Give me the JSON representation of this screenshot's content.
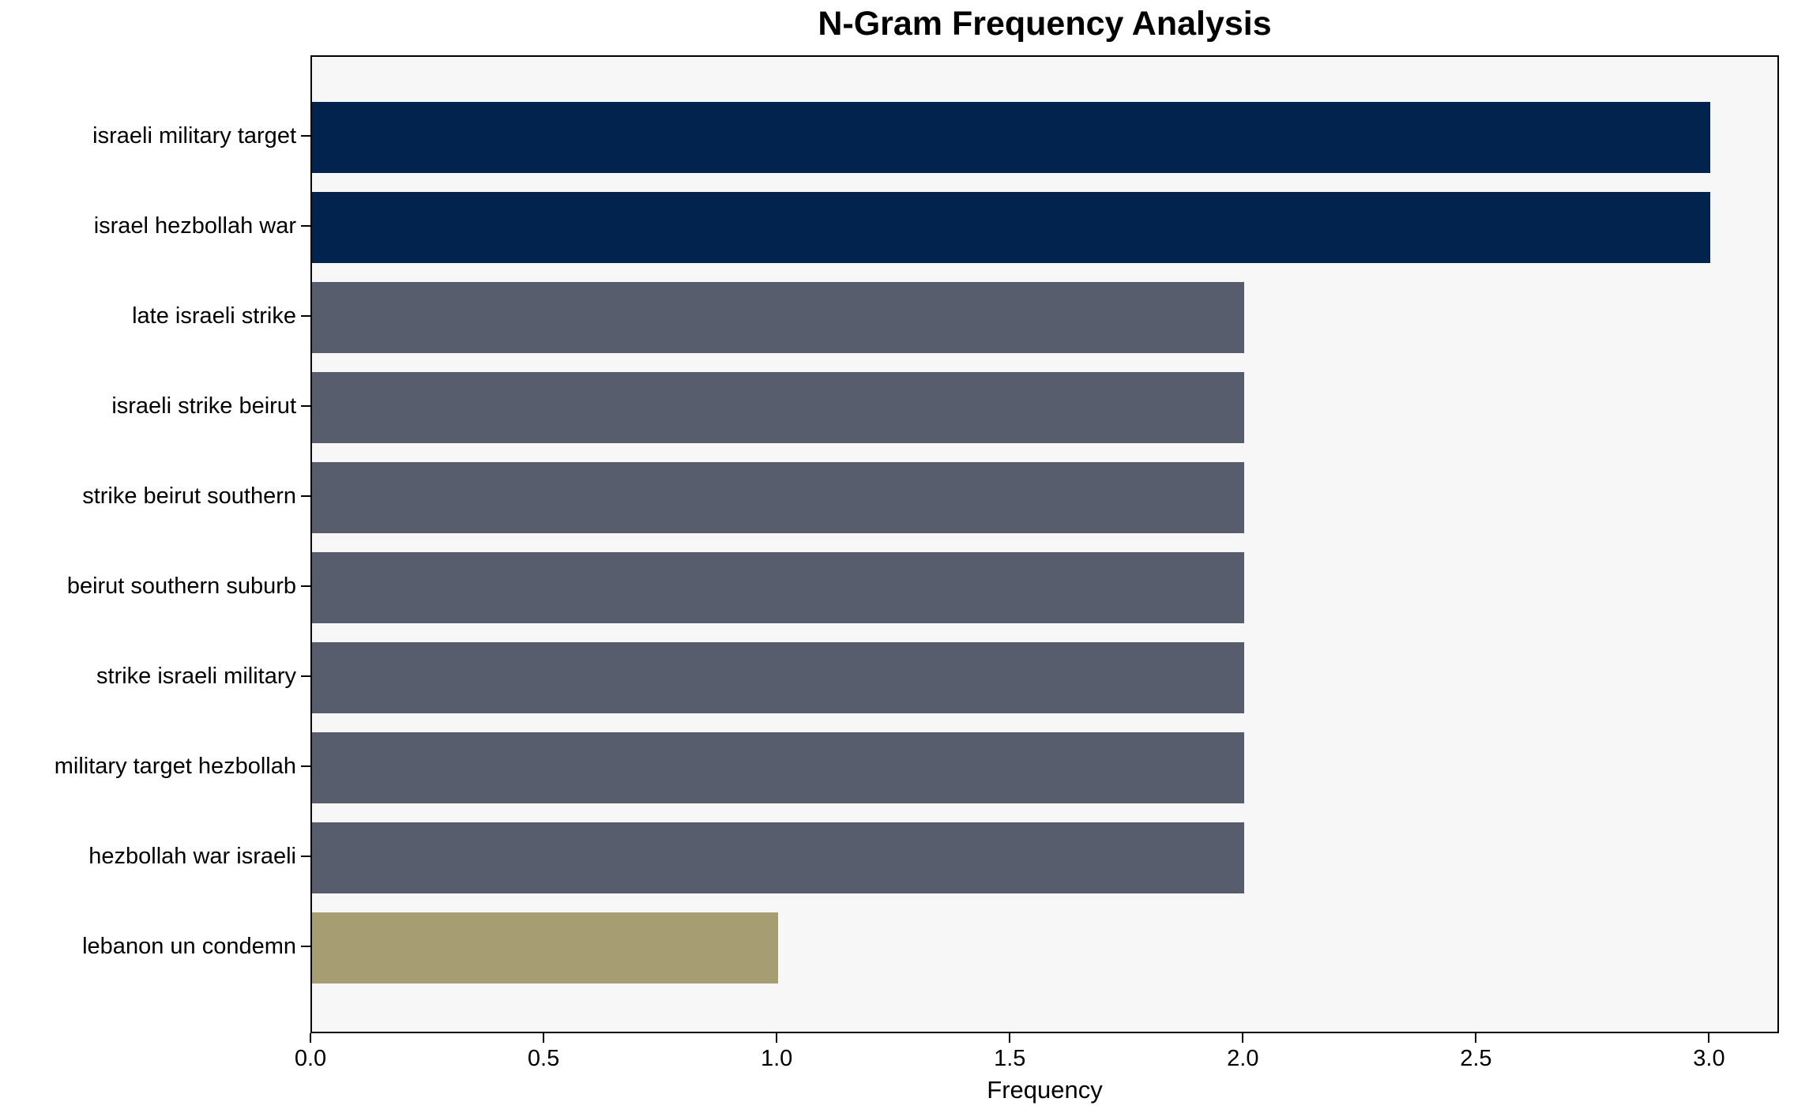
{
  "chart_data": {
    "type": "bar",
    "orientation": "horizontal",
    "title": "N-Gram Frequency Analysis",
    "xlabel": "Frequency",
    "ylabel": "",
    "categories": [
      "israeli military target",
      "israel hezbollah war",
      "late israeli strike",
      "israeli strike beirut",
      "strike beirut southern",
      "beirut southern suburb",
      "strike israeli military",
      "military target hezbollah",
      "hezbollah war israeli",
      "lebanon un condemn"
    ],
    "values": [
      3,
      3,
      2,
      2,
      2,
      2,
      2,
      2,
      2,
      1
    ],
    "bar_colors": [
      "#02234d",
      "#02234d",
      "#575d6d",
      "#575d6d",
      "#575d6d",
      "#575d6d",
      "#575d6d",
      "#575d6d",
      "#575d6d",
      "#a79d73"
    ],
    "xlim": [
      0,
      3.15
    ],
    "xticks": [
      0,
      0.5,
      1,
      1.5,
      2,
      2.5,
      3
    ],
    "xtick_labels": [
      "0.0",
      "0.5",
      "1.0",
      "1.5",
      "2.0",
      "2.5",
      "3.0"
    ],
    "grid": false,
    "legend": null,
    "colors": {
      "plot_background": "#f7f7f7",
      "figure_background": "#ffffff",
      "axis": "#000000",
      "text": "#000000"
    }
  }
}
